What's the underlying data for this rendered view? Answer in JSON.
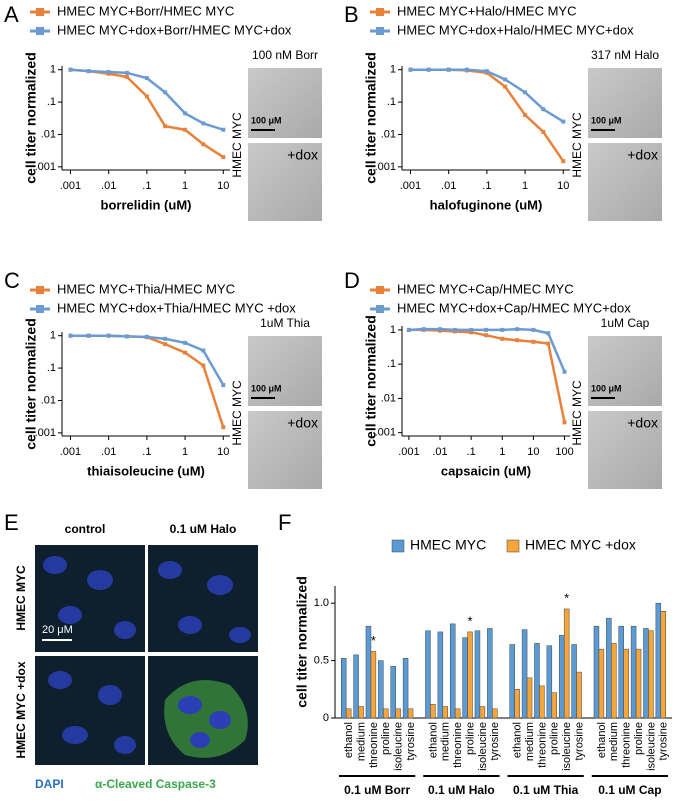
{
  "panel_letters": [
    "A",
    "B",
    "C",
    "D",
    "E",
    "F"
  ],
  "micrographs": [
    {
      "title": "100 nM Borr",
      "row_label": "HMEC MYC",
      "scale": "100 μM",
      "dox": "+dox"
    },
    {
      "title": "317 nM Halo",
      "row_label": "HMEC MYC",
      "scale": "100 μM",
      "dox": "+dox"
    },
    {
      "title": "1uM Thia",
      "row_label": "HMEC MYC",
      "scale": "100 μM",
      "dox": "+dox"
    },
    {
      "title": "1uM Cap",
      "row_label": "HMEC MYC",
      "scale": "100 μM",
      "dox": "+dox"
    }
  ],
  "immunofluorescence": {
    "columns": [
      "control",
      "0.1 uM Halo"
    ],
    "rows": [
      "HMEC MYC",
      "HMEC MYC +dox"
    ],
    "scale": "20 μM",
    "stains": [
      "DAPI",
      "α-Cleaved Caspase-3"
    ]
  },
  "chart_data": [
    {
      "type": "line",
      "log_x": true,
      "log_y": true,
      "xlabel": "borrelidin (uM)",
      "ylabel": "cell titer normalized",
      "x": [
        0.001,
        0.003,
        0.01,
        0.03,
        0.1,
        0.3,
        1,
        3,
        10
      ],
      "series": [
        {
          "name": "HMEC MYC+Borr/HMEC MYC",
          "color": "#e8823a",
          "values": [
            1,
            0.9,
            0.75,
            0.6,
            0.15,
            0.018,
            0.014,
            0.005,
            0.002
          ]
        },
        {
          "name": "HMEC MYC+dox+Borr/HMEC MYC+dox",
          "color": "#6b9bd2",
          "values": [
            1,
            0.9,
            0.85,
            0.8,
            0.55,
            0.2,
            0.045,
            0.022,
            0.014
          ]
        }
      ],
      "xlim": [
        0.0006,
        15
      ],
      "ylim": [
        0.0008,
        1.3
      ],
      "xticks": [
        {
          "value": 0.001,
          "label": ".001"
        },
        {
          "value": 0.01,
          "label": ".01"
        },
        {
          "value": 0.1,
          "label": ".1"
        },
        1,
        10
      ],
      "yticks": [
        {
          "value": 0.001,
          "label": ".001"
        },
        {
          "value": 0.01,
          "label": ".01"
        },
        {
          "value": 0.1,
          "label": ".1"
        },
        1
      ]
    },
    {
      "type": "line",
      "log_x": true,
      "log_y": true,
      "xlabel": "halofuginone (uM)",
      "ylabel": "cell titer normalized",
      "x": [
        0.001,
        0.003,
        0.01,
        0.03,
        0.1,
        0.3,
        1,
        3,
        10
      ],
      "series": [
        {
          "name": "HMEC MYC+Halo/HMEC MYC",
          "color": "#e8823a",
          "values": [
            1,
            1,
            1,
            0.95,
            0.8,
            0.3,
            0.04,
            0.012,
            0.0015
          ]
        },
        {
          "name": "HMEC MYC+dox+Halo/HMEC MYC+dox",
          "color": "#6b9bd2",
          "values": [
            1,
            1,
            1,
            1,
            0.9,
            0.5,
            0.2,
            0.06,
            0.025
          ]
        }
      ],
      "xlim": [
        0.0006,
        15
      ],
      "ylim": [
        0.0008,
        1.3
      ],
      "xticks": [
        {
          "value": 0.001,
          "label": ".001"
        },
        {
          "value": 0.01,
          "label": ".01"
        },
        {
          "value": 0.1,
          "label": ".1"
        },
        1,
        10
      ],
      "yticks": [
        {
          "value": 0.001,
          "label": ".001"
        },
        {
          "value": 0.01,
          "label": ".01"
        },
        {
          "value": 0.1,
          "label": ".1"
        },
        1
      ]
    },
    {
      "type": "line",
      "log_x": true,
      "log_y": true,
      "xlabel": "thiaisoleucine (uM)",
      "ylabel": "cell titer normalized",
      "x": [
        0.001,
        0.003,
        0.01,
        0.03,
        0.1,
        0.3,
        1,
        3,
        10
      ],
      "series": [
        {
          "name": "HMEC MYC+Thia/HMEC MYC",
          "color": "#e8823a",
          "values": [
            1,
            1,
            1,
            0.95,
            0.9,
            0.55,
            0.3,
            0.12,
            0.0015
          ]
        },
        {
          "name": "HMEC MYC+dox+Thia/HMEC MYC +dox",
          "color": "#6b9bd2",
          "values": [
            1,
            1,
            1,
            0.95,
            0.92,
            0.8,
            0.6,
            0.35,
            0.03
          ]
        }
      ],
      "xlim": [
        0.0006,
        15
      ],
      "ylim": [
        0.0008,
        1.3
      ],
      "xticks": [
        {
          "value": 0.001,
          "label": ".001"
        },
        {
          "value": 0.01,
          "label": ".01"
        },
        {
          "value": 0.1,
          "label": ".1"
        },
        1,
        10
      ],
      "yticks": [
        {
          "value": 0.001,
          "label": ".001"
        },
        {
          "value": 0.01,
          "label": ".01"
        },
        {
          "value": 0.1,
          "label": ".1"
        },
        1
      ]
    },
    {
      "type": "line",
      "log_x": true,
      "log_y": true,
      "xlabel": "capsaicin (uM)",
      "ylabel": "cell titer normalized",
      "x": [
        0.001,
        0.003,
        0.01,
        0.03,
        0.1,
        0.3,
        1,
        3,
        10,
        30,
        100
      ],
      "series": [
        {
          "name": "HMEC MYC+Cap/HMEC MYC",
          "color": "#e8823a",
          "values": [
            1,
            1,
            0.95,
            0.9,
            0.85,
            0.7,
            0.55,
            0.5,
            0.45,
            0.4,
            0.002
          ]
        },
        {
          "name": "HMEC MYC+dox+Cap/HMEC MYC+dox",
          "color": "#6b9bd2",
          "values": [
            1,
            1.05,
            1.05,
            1,
            1,
            1,
            1,
            1.05,
            1,
            0.8,
            0.06
          ]
        }
      ],
      "xlim": [
        0.0006,
        150
      ],
      "ylim": [
        0.0008,
        1.3
      ],
      "xticks": [
        {
          "value": 0.001,
          "label": ".001"
        },
        {
          "value": 0.01,
          "label": ".01"
        },
        {
          "value": 0.1,
          "label": ".1"
        },
        1,
        10,
        100
      ],
      "yticks": [
        {
          "value": 0.001,
          "label": ".001"
        },
        {
          "value": 0.01,
          "label": ".01"
        },
        {
          "value": 0.1,
          "label": ".1"
        },
        1
      ]
    },
    {
      "type": "bar",
      "ylabel": "cell titer normalized",
      "categories": [
        "ethanol",
        "medium",
        "threonine",
        "proline",
        "isoleucine",
        "tyrosine",
        "ethanol",
        "medium",
        "threonine",
        "proline",
        "isoleucine",
        "tyrosine",
        "ethanol",
        "medium",
        "threonine",
        "proline",
        "isoleucine",
        "tyrosine",
        "ethanol",
        "medium",
        "threonine",
        "proline",
        "isoleucine",
        "tyrosine"
      ],
      "group_labels": [
        "0.1 uM Borr",
        "0.1 uM Halo",
        "0.1 uM Thia",
        "0.1 uM Cap"
      ],
      "series": [
        {
          "name": "HMEC MYC",
          "color": "#5b9bd5",
          "values": [
            0.52,
            0.55,
            0.8,
            0.5,
            0.45,
            0.52,
            0.76,
            0.75,
            0.82,
            0.7,
            0.76,
            0.78,
            0.64,
            0.77,
            0.65,
            0.63,
            0.72,
            0.64,
            0.8,
            0.87,
            0.8,
            0.8,
            0.78,
            1.0
          ]
        },
        {
          "name": "HMEC MYC +dox",
          "color": "#f5a53a",
          "values": [
            0.08,
            0.1,
            0.58,
            0.08,
            0.08,
            0.08,
            0.12,
            0.1,
            0.08,
            0.75,
            0.1,
            0.08,
            0.25,
            0.35,
            0.28,
            0.22,
            0.95,
            0.4,
            0.6,
            0.65,
            0.6,
            0.6,
            0.76,
            0.93
          ]
        }
      ],
      "annotations": [
        "*",
        "*",
        "*"
      ],
      "ylim": [
        0,
        1.15
      ],
      "yticks": [
        0,
        0.5,
        {
          "value": 1,
          "label": "1.0"
        }
      ]
    }
  ]
}
